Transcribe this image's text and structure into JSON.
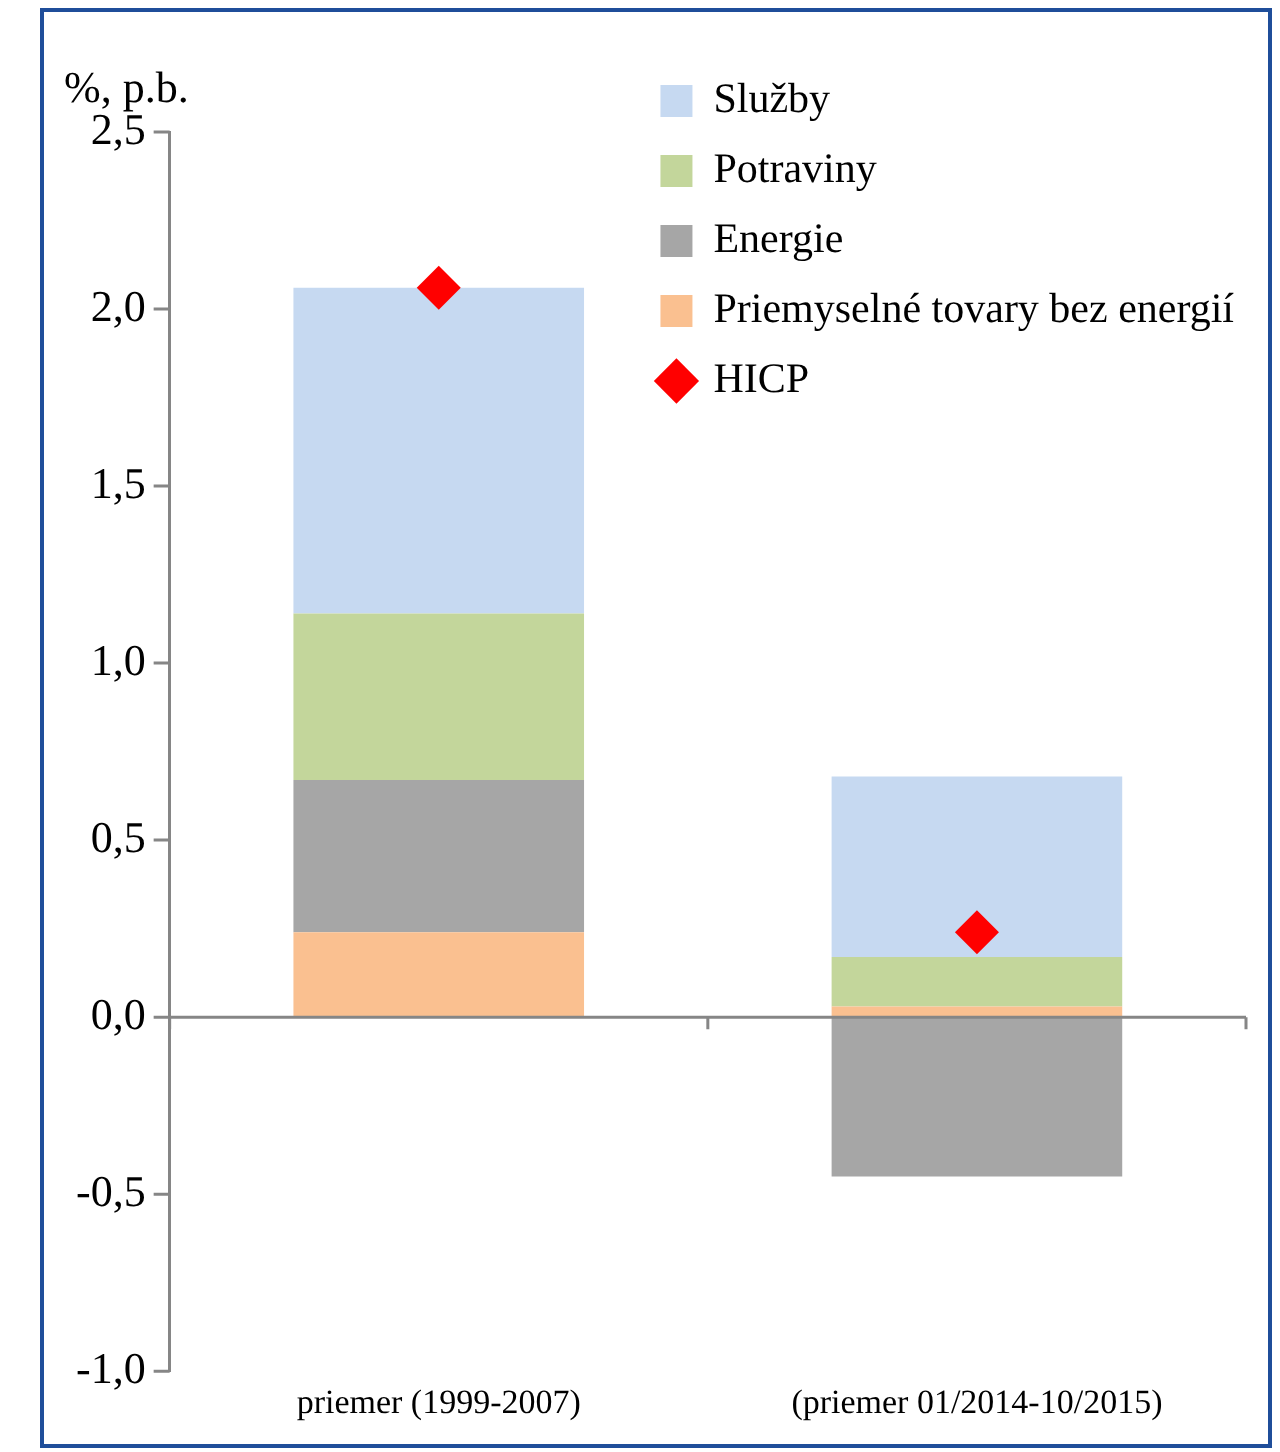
{
  "chart_data": {
    "type": "bar",
    "stacked": true,
    "ylabel": "%, p.b.",
    "categories": [
      "priemer (1999-2007)",
      "(priemer 01/2014-10/2015)"
    ],
    "ylim": [
      -1,
      2.5
    ],
    "yticks": [
      {
        "value": -1,
        "label": "-1,0"
      },
      {
        "value": -0.5,
        "label": "-0,5"
      },
      {
        "value": 0,
        "label": "0,0"
      },
      {
        "value": 0.5,
        "label": "0,5"
      },
      {
        "value": 1,
        "label": "1,0"
      },
      {
        "value": 1.5,
        "label": "1,5"
      },
      {
        "value": 2,
        "label": "2,0"
      },
      {
        "value": 2.5,
        "label": "2,5"
      }
    ],
    "grid": false,
    "legend": "top right",
    "ref_lines": [
      {
        "axis": "y",
        "value": 0,
        "color": "#868686"
      }
    ],
    "series": [
      {
        "name": "Priemyselné tovary bez energií",
        "color": "#fac090",
        "values": [
          0.24,
          0.03
        ]
      },
      {
        "name": "Energie",
        "color": "#a6a6a6",
        "values": [
          0.43,
          -0.45
        ]
      },
      {
        "name": "Potraviny",
        "color": "#c3d69b",
        "values": [
          0.47,
          0.14
        ]
      },
      {
        "name": "Služby",
        "color": "#c6d9f1",
        "values": [
          0.92,
          0.51
        ]
      },
      {
        "name": "HICP",
        "type": "scatter",
        "marker": "diamond",
        "color": "#ff0000",
        "x": [
          "priemer (1999-2007)",
          "(priemer 01/2014-10/2015)"
        ],
        "values": [
          2.06,
          0.24
        ]
      }
    ]
  }
}
